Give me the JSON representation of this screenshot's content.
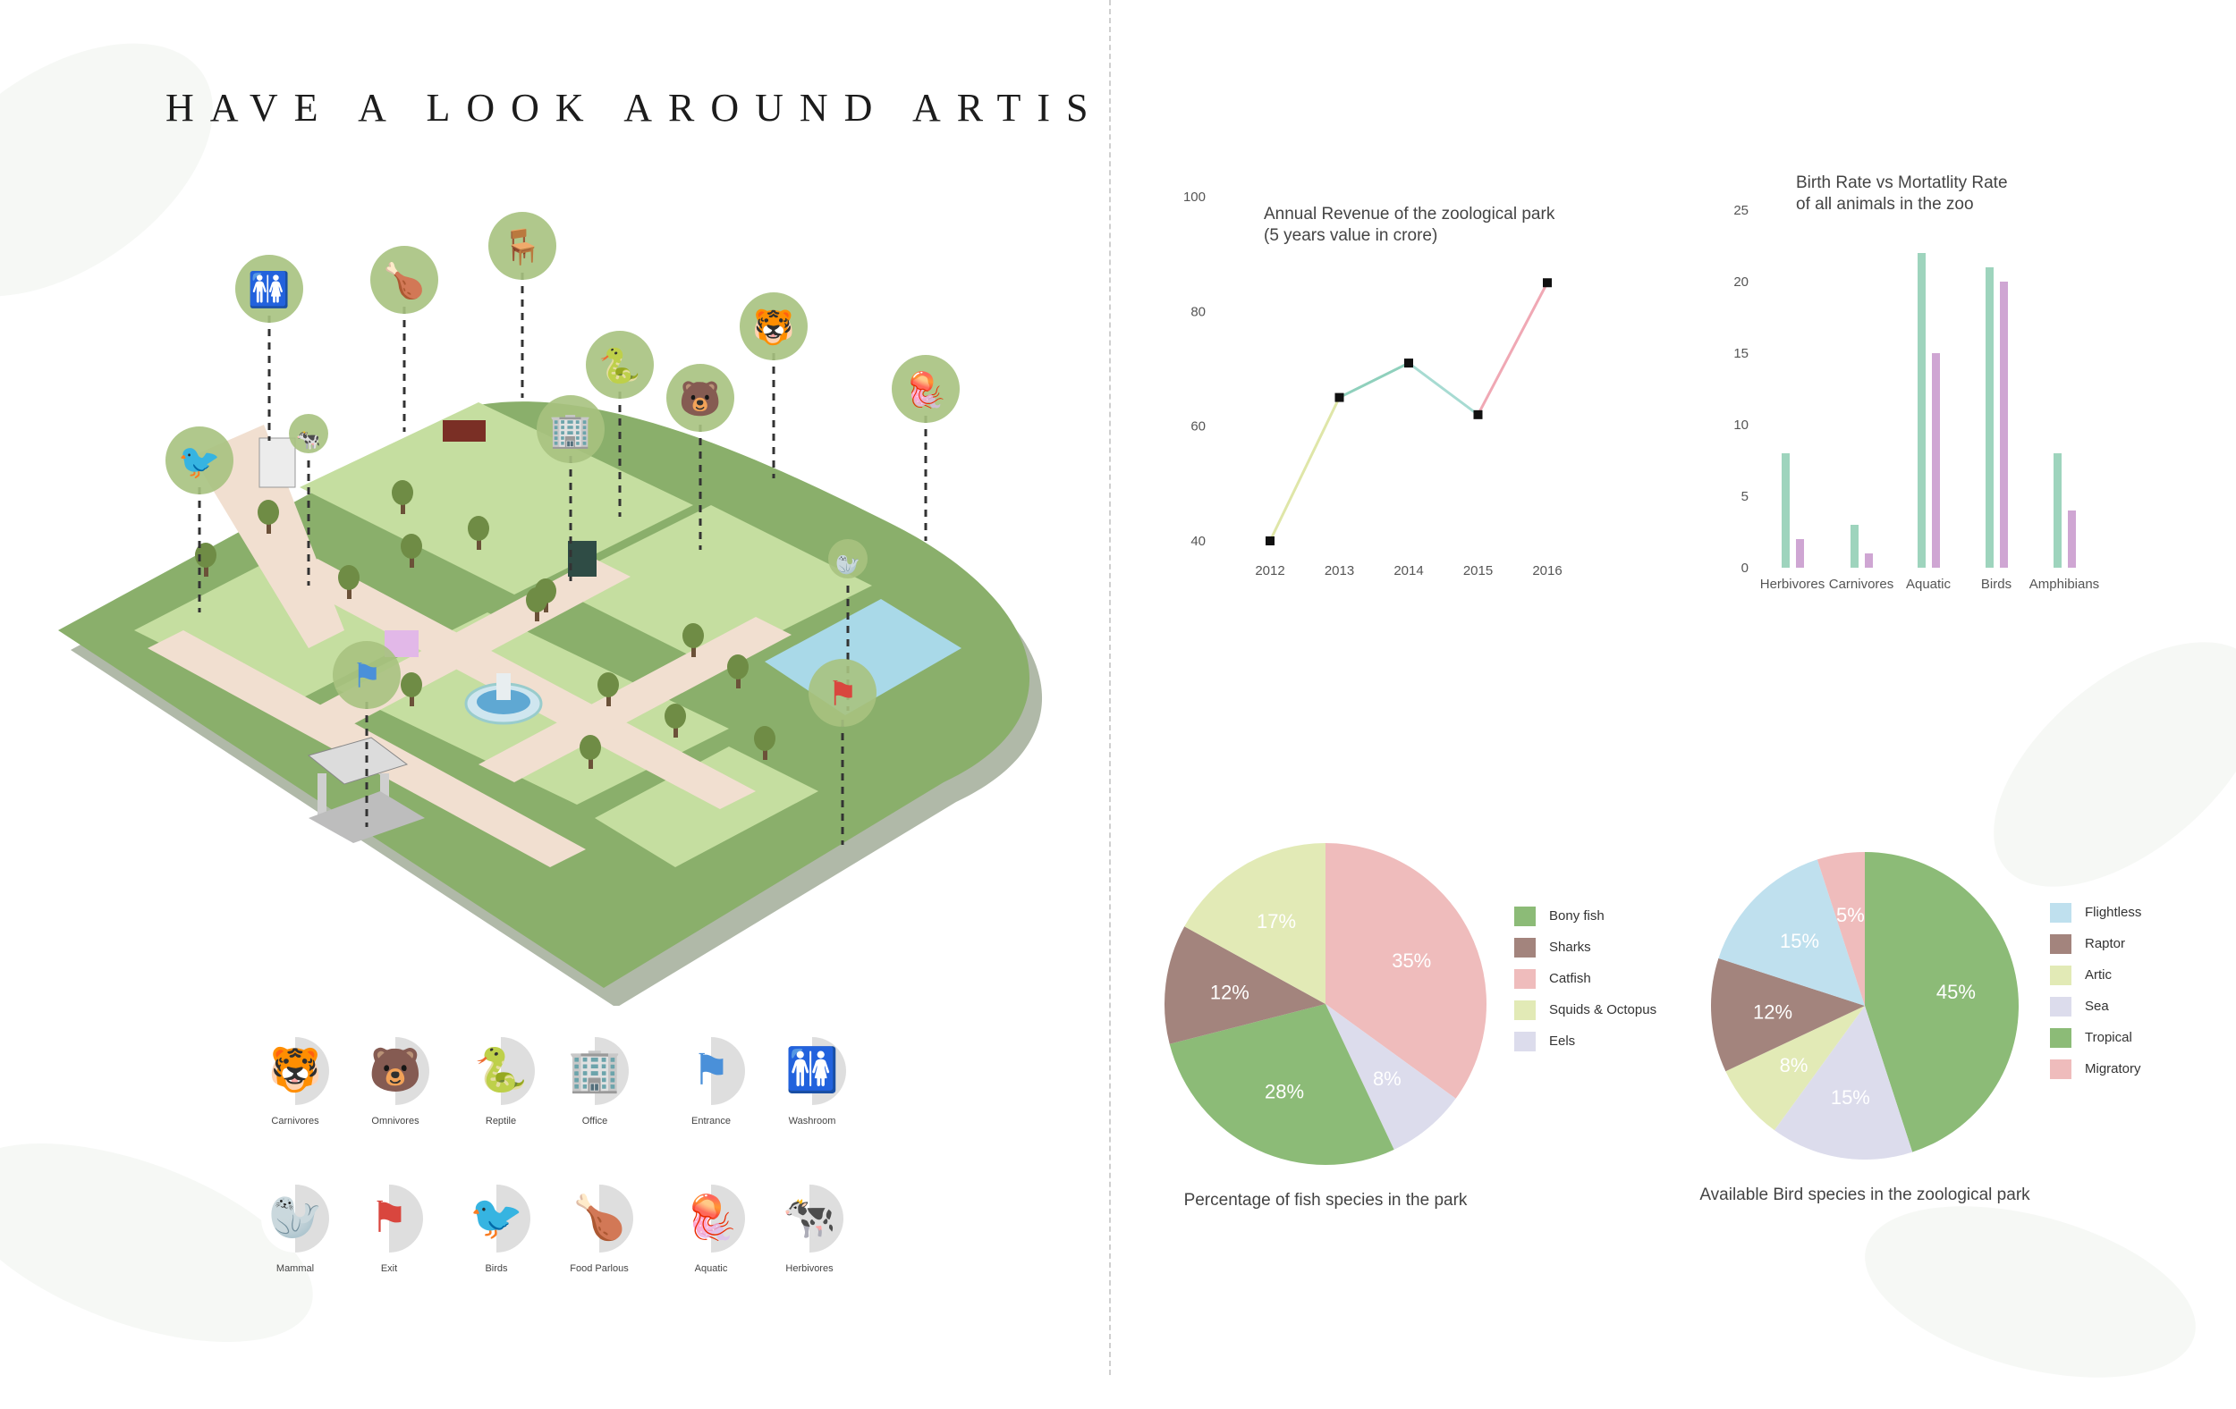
{
  "header": {
    "title": "HAVE A LOOK AROUND ARTIS"
  },
  "map": {
    "pins": [
      {
        "icon": "bird-icon",
        "glyph": "🐦"
      },
      {
        "icon": "washroom-icon",
        "glyph": "🚻"
      },
      {
        "icon": "cow-icon",
        "glyph": "🐄"
      },
      {
        "icon": "food-parlour-icon",
        "glyph": "🍗"
      },
      {
        "icon": "bench-icon",
        "glyph": "🪑"
      },
      {
        "icon": "office-icon",
        "glyph": "🏢"
      },
      {
        "icon": "reptile-icon",
        "glyph": "🐍"
      },
      {
        "icon": "bear-icon",
        "glyph": "🐻"
      },
      {
        "icon": "tiger-icon",
        "glyph": "🐯"
      },
      {
        "icon": "jellyfish-icon",
        "glyph": "🪼"
      },
      {
        "icon": "seal-icon",
        "glyph": "🦭"
      },
      {
        "icon": "entrance-flag-icon",
        "glyph": "⚑"
      },
      {
        "icon": "exit-flag-icon",
        "glyph": "⚑"
      }
    ],
    "colors": {
      "ground": "#8aaf6b",
      "lawn": "#c5dea0",
      "path": "#f1dfd0",
      "water": "#a9d9e8"
    }
  },
  "legend": [
    {
      "label": "Carnivores",
      "icon": "tiger-icon",
      "glyph": "🐯"
    },
    {
      "label": "Omnivores",
      "icon": "bear-icon",
      "glyph": "🐻"
    },
    {
      "label": "Reptile",
      "icon": "reptile-icon",
      "glyph": "🐍"
    },
    {
      "label": "Office",
      "icon": "office-icon",
      "glyph": "🏢"
    },
    {
      "label": "Entrance",
      "icon": "entrance-flag-icon",
      "glyph": "⚑"
    },
    {
      "label": "Washroom",
      "icon": "washroom-icon",
      "glyph": "🚻"
    },
    {
      "label": "Mammal",
      "icon": "seal-icon",
      "glyph": "🦭"
    },
    {
      "label": "Exit",
      "icon": "exit-flag-icon",
      "glyph": "⚑"
    },
    {
      "label": "Birds",
      "icon": "bird-icon",
      "glyph": "🐦"
    },
    {
      "label": "Food Parlous",
      "icon": "food-parlour-icon",
      "glyph": "🍗"
    },
    {
      "label": "Aquatic",
      "icon": "jellyfish-icon",
      "glyph": "🪼"
    },
    {
      "label": "Herbivores",
      "icon": "cow-icon",
      "glyph": "🐄"
    }
  ],
  "chart_data": [
    {
      "type": "line",
      "title": "Annual Revenue of the zoological park",
      "subtitle": "(5 years value in crore)",
      "x": [
        "2012",
        "2013",
        "2014",
        "2015",
        "2016"
      ],
      "values": [
        40,
        65,
        71,
        62,
        85
      ],
      "ylim": [
        40,
        100
      ],
      "yticks": [
        40,
        60,
        80,
        100
      ],
      "segment_colors": [
        "#dfe6a8",
        "#8fd0bc",
        "#a7dbd2",
        "#f0a8b4"
      ],
      "point_color": "#111111"
    },
    {
      "type": "bar",
      "title": "Birth Rate vs Mortatlity Rate",
      "subtitle": "of all animals in the zoo",
      "categories": [
        "Herbivores",
        "Carnivores",
        "Aquatic",
        "Birds",
        "Amphibians"
      ],
      "series": [
        {
          "values": [
            8,
            3,
            22,
            21,
            8
          ],
          "color": "#9ed4bd"
        },
        {
          "values": [
            2,
            1,
            15,
            20,
            4
          ],
          "color": "#cfa6d3"
        }
      ],
      "ylim": [
        0,
        25
      ],
      "yticks": [
        0,
        5,
        10,
        15,
        20,
        25
      ]
    },
    {
      "type": "pie",
      "title": "Percentage of fish species in the park",
      "slices": [
        {
          "label": "Catfish",
          "value": 35,
          "text": "35%",
          "color": "#efbcbc"
        },
        {
          "label": "Eels",
          "value": 8,
          "text": "8%",
          "color": "#dcdcec"
        },
        {
          "label": "Bony fish",
          "value": 28,
          "text": "28%",
          "color": "#8cbb77"
        },
        {
          "label": "Sharks",
          "value": 12,
          "text": "12%",
          "color": "#a3847d"
        },
        {
          "label": "Squids & Octopus",
          "value": 17,
          "text": "17%",
          "color": "#e2eab6"
        }
      ],
      "legend": [
        "Bony fish",
        "Sharks",
        "Catfish",
        "Squids & Octopus",
        "Eels"
      ]
    },
    {
      "type": "pie",
      "title": "Available Bird species in the zoological park",
      "slices": [
        {
          "label": "Tropical",
          "value": 45,
          "text": "45%",
          "color": "#8cbb77"
        },
        {
          "label": "Sea",
          "value": 15,
          "text": "15%",
          "color": "#dcdcec"
        },
        {
          "label": "Artic",
          "value": 8,
          "text": "8%",
          "color": "#e2eab6"
        },
        {
          "label": "Raptor",
          "value": 12,
          "text": "12%",
          "color": "#a3847d"
        },
        {
          "label": "Flightless",
          "value": 15,
          "text": "15%",
          "color": "#bfe0ee"
        },
        {
          "label": "Migratory",
          "value": 5,
          "text": "5%",
          "color": "#efbcbc"
        }
      ],
      "legend": [
        "Flightless",
        "Raptor",
        "Artic",
        "Sea",
        "Tropical",
        "Migratory"
      ]
    }
  ]
}
